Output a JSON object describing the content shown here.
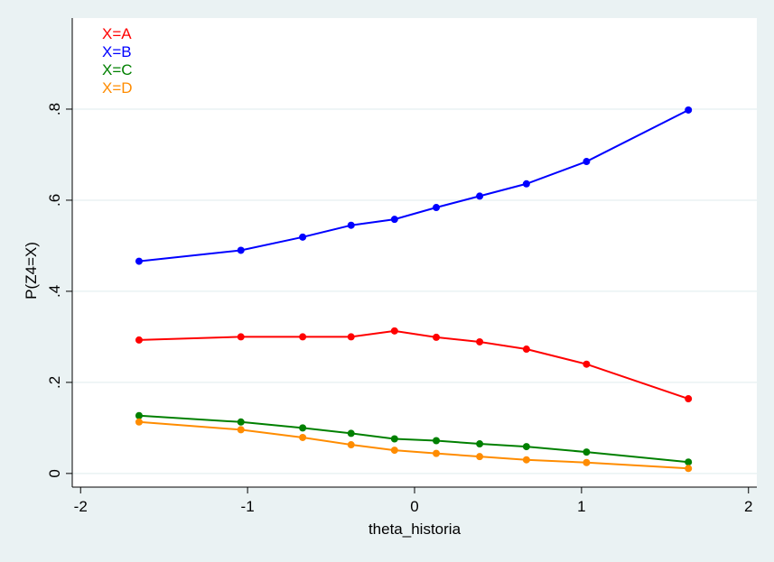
{
  "colors": {
    "page_background": "#eaf2f3",
    "plot_background": "#ffffff",
    "grid": "#eaf2f3",
    "axis": "#000000"
  },
  "chart_data": {
    "type": "line",
    "title": "",
    "xlabel": "theta_historia",
    "ylabel": "P(Z4=X)",
    "xlim": [
      -2.05,
      2.05
    ],
    "ylim": [
      -0.03,
      1.0
    ],
    "x_ticks": [
      {
        "value": -2,
        "label": "-2"
      },
      {
        "value": -1,
        "label": "-1"
      },
      {
        "value": 0,
        "label": "0"
      },
      {
        "value": 1,
        "label": "1"
      },
      {
        "value": 2,
        "label": "2"
      }
    ],
    "y_ticks": [
      {
        "value": 0,
        "label": "0"
      },
      {
        "value": 0.2,
        "label": ".2"
      },
      {
        "value": 0.4,
        "label": ".4"
      },
      {
        "value": 0.6,
        "label": ".6"
      },
      {
        "value": 0.8,
        "label": ".8"
      }
    ],
    "grid": true,
    "legend_position": "top-left",
    "x": [
      -1.65,
      -1.04,
      -0.67,
      -0.38,
      -0.12,
      0.13,
      0.39,
      0.67,
      1.03,
      1.64
    ],
    "series": [
      {
        "name": "X=A",
        "color": "#ff0000",
        "values": [
          0.293,
          0.3,
          0.3,
          0.3,
          0.313,
          0.299,
          0.289,
          0.273,
          0.24,
          0.164
        ]
      },
      {
        "name": "X=B",
        "color": "#0000ff",
        "values": [
          0.466,
          0.49,
          0.519,
          0.545,
          0.558,
          0.584,
          0.609,
          0.636,
          0.685,
          0.798
        ]
      },
      {
        "name": "X=C",
        "color": "#008000",
        "values": [
          0.127,
          0.113,
          0.1,
          0.088,
          0.076,
          0.072,
          0.065,
          0.059,
          0.047,
          0.025
        ]
      },
      {
        "name": "X=D",
        "color": "#ff8c00",
        "values": [
          0.113,
          0.096,
          0.079,
          0.063,
          0.051,
          0.044,
          0.037,
          0.03,
          0.024,
          0.011
        ]
      }
    ]
  }
}
